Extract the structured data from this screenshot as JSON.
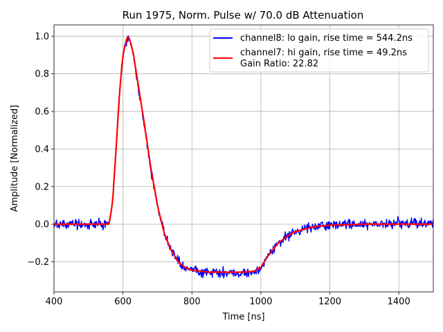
{
  "chart_data": {
    "type": "line",
    "title": "Run 1975, Norm. Pulse w/ 70.0 dB Attenuation",
    "xlabel": "Time [ns]",
    "ylabel": "Amplitude [Normalized]",
    "xlim": [
      400,
      1500
    ],
    "ylim": [
      -0.36,
      1.06
    ],
    "xticks": [
      400,
      600,
      800,
      1000,
      1200,
      1400
    ],
    "xtick_labels": [
      "400",
      "600",
      "800",
      "1000",
      "1200",
      "1400"
    ],
    "yticks": [
      -0.2,
      0.0,
      0.2,
      0.4,
      0.6,
      0.8,
      1.0
    ],
    "ytick_labels": [
      "−0.2",
      "0.0",
      "0.2",
      "0.4",
      "0.6",
      "0.8",
      "1.0"
    ],
    "grid": true,
    "legend_position": "top-right",
    "series": [
      {
        "name": "channel8: lo gain, rise time = 544.2ns",
        "color": "#0000ff",
        "noise": 0.025,
        "x": [
          400,
          560,
          570,
          580,
          590,
          600,
          610,
          615,
          620,
          630,
          640,
          660,
          680,
          700,
          720,
          740,
          760,
          780,
          800,
          850,
          900,
          950,
          980,
          1000,
          1020,
          1050,
          1080,
          1100,
          1150,
          1200,
          1300,
          1400,
          1500
        ],
        "y": [
          0.0,
          0.0,
          0.12,
          0.4,
          0.7,
          0.9,
          0.98,
          0.99,
          0.97,
          0.9,
          0.78,
          0.55,
          0.3,
          0.1,
          -0.05,
          -0.14,
          -0.2,
          -0.23,
          -0.245,
          -0.255,
          -0.26,
          -0.26,
          -0.255,
          -0.235,
          -0.17,
          -0.1,
          -0.06,
          -0.04,
          -0.015,
          -0.005,
          0.0,
          0.005,
          0.005
        ]
      },
      {
        "name": "channel7: hi gain, rise time = 49.2ns",
        "color": "#ff0000",
        "noise": 0.0,
        "x": [
          400,
          560,
          570,
          580,
          590,
          600,
          610,
          615,
          620,
          630,
          640,
          660,
          680,
          700,
          720,
          740,
          760,
          780,
          800,
          850,
          900,
          950,
          980,
          1000,
          1020,
          1050,
          1080,
          1100,
          1150,
          1200,
          1300,
          1400,
          1500
        ],
        "y": [
          0.0,
          0.0,
          0.12,
          0.4,
          0.7,
          0.9,
          0.98,
          1.0,
          0.98,
          0.91,
          0.79,
          0.56,
          0.31,
          0.1,
          -0.05,
          -0.14,
          -0.2,
          -0.23,
          -0.245,
          -0.255,
          -0.255,
          -0.255,
          -0.25,
          -0.23,
          -0.17,
          -0.1,
          -0.06,
          -0.04,
          -0.015,
          -0.005,
          0.0,
          0.0,
          0.0
        ]
      }
    ],
    "annotations": {
      "gain_ratio_text": "Gain Ratio: 22.82"
    }
  }
}
